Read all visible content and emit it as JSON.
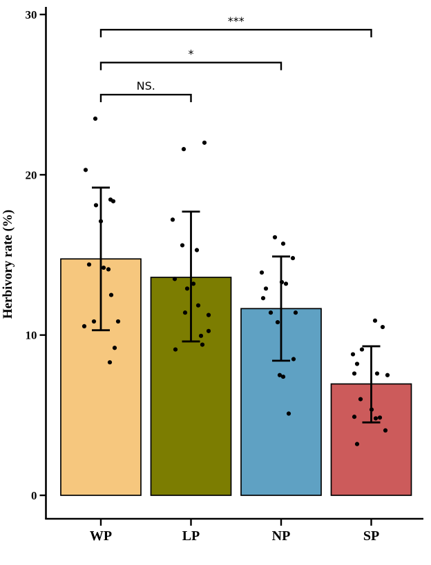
{
  "chart_data": {
    "type": "bar",
    "title": "",
    "xlabel": "",
    "ylabel": "Herbivory rate (%)",
    "ylim": [
      0,
      30
    ],
    "yticks": [
      0,
      10,
      20,
      30
    ],
    "grid": "off",
    "legend": "none",
    "categories": [
      "WP",
      "LP",
      "NP",
      "SP"
    ],
    "groups": [
      {
        "label": "WP",
        "mean": 14.75,
        "sd_low": 10.3,
        "sd_high": 19.2,
        "color": "#F6C77E",
        "points": [
          {
            "v": 23.5,
            "j": -8
          },
          {
            "v": 20.3,
            "j": -22
          },
          {
            "v": 18.45,
            "j": 14
          },
          {
            "v": 18.35,
            "j": 18
          },
          {
            "v": 18.1,
            "j": -7
          },
          {
            "v": 17.1,
            "j": 0
          },
          {
            "v": 14.4,
            "j": -17
          },
          {
            "v": 14.2,
            "j": 4
          },
          {
            "v": 14.1,
            "j": 11
          },
          {
            "v": 12.5,
            "j": 15
          },
          {
            "v": 10.85,
            "j": -10
          },
          {
            "v": 10.85,
            "j": 25
          },
          {
            "v": 10.55,
            "j": -24
          },
          {
            "v": 9.2,
            "j": 20
          },
          {
            "v": 8.3,
            "j": 13
          }
        ]
      },
      {
        "label": "LP",
        "mean": 13.6,
        "sd_low": 9.6,
        "sd_high": 17.7,
        "color": "#7C7D01",
        "points": [
          {
            "v": 22.0,
            "j": 19.5
          },
          {
            "v": 21.6,
            "j": -10.5
          },
          {
            "v": 17.2,
            "j": -26.5
          },
          {
            "v": 15.6,
            "j": -12.5
          },
          {
            "v": 15.3,
            "j": 8.5
          },
          {
            "v": 13.5,
            "j": -23.5
          },
          {
            "v": 13.2,
            "j": 3.5
          },
          {
            "v": 12.9,
            "j": -5.5
          },
          {
            "v": 11.85,
            "j": 10.5
          },
          {
            "v": 11.4,
            "j": -8.5
          },
          {
            "v": 11.25,
            "j": 25.5
          },
          {
            "v": 10.25,
            "j": 25.5
          },
          {
            "v": 9.95,
            "j": 14.5
          },
          {
            "v": 9.4,
            "j": 16.5
          },
          {
            "v": 9.1,
            "j": -22.5
          }
        ]
      },
      {
        "label": "NP",
        "mean": 11.65,
        "sd_low": 8.4,
        "sd_high": 14.9,
        "color": "#5FA1C3",
        "points": [
          {
            "v": 16.1,
            "j": -9
          },
          {
            "v": 15.7,
            "j": 3
          },
          {
            "v": 14.8,
            "j": 17
          },
          {
            "v": 13.9,
            "j": -28
          },
          {
            "v": 13.3,
            "j": 1
          },
          {
            "v": 13.2,
            "j": 7
          },
          {
            "v": 12.9,
            "j": -22
          },
          {
            "v": 12.3,
            "j": -26
          },
          {
            "v": 11.4,
            "j": -15
          },
          {
            "v": 11.4,
            "j": 21
          },
          {
            "v": 10.8,
            "j": -5
          },
          {
            "v": 8.5,
            "j": 18
          },
          {
            "v": 7.5,
            "j": -2
          },
          {
            "v": 7.4,
            "j": 3
          },
          {
            "v": 5.1,
            "j": 11
          }
        ]
      },
      {
        "label": "SP",
        "mean": 6.95,
        "sd_low": 4.55,
        "sd_high": 9.3,
        "color": "#CC5B5B",
        "points": [
          {
            "v": 10.9,
            "j": 5.5
          },
          {
            "v": 10.5,
            "j": 16.5
          },
          {
            "v": 9.1,
            "j": -13.5
          },
          {
            "v": 8.8,
            "j": -26.5
          },
          {
            "v": 8.2,
            "j": -20.5
          },
          {
            "v": 7.6,
            "j": -24.5
          },
          {
            "v": 7.6,
            "j": 8.5
          },
          {
            "v": 7.5,
            "j": 23.5
          },
          {
            "v": 6.0,
            "j": -15.5
          },
          {
            "v": 5.35,
            "j": 0.5
          },
          {
            "v": 4.9,
            "j": -24.5
          },
          {
            "v": 4.85,
            "j": 12.5
          },
          {
            "v": 4.8,
            "j": 6.5
          },
          {
            "v": 4.05,
            "j": 20.5
          },
          {
            "v": 3.2,
            "j": -20.5
          }
        ]
      }
    ],
    "significance": [
      {
        "a": 0,
        "b": 1,
        "label": "NS.",
        "y": 25.0
      },
      {
        "a": 0,
        "b": 2,
        "label": "*",
        "y": 27.0
      },
      {
        "a": 0,
        "b": 3,
        "label": "***",
        "y": 29.05
      }
    ],
    "point_color": "#000000",
    "axis_color": "#000000"
  }
}
